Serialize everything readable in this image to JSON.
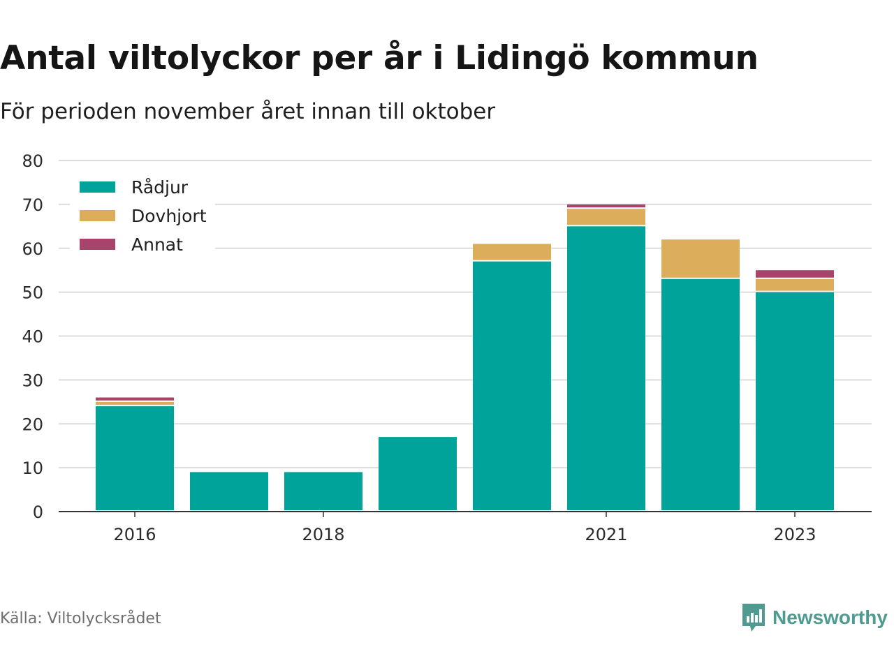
{
  "header": {
    "title": "Antal viltolyckor per år i Lidingö kommun",
    "subtitle": "För perioden november året innan till oktober"
  },
  "footer": {
    "source": "Källa: Viltolycksrådet",
    "brand": "Newsworthy",
    "brand_icon": "bar-chart-speech-bubble-icon",
    "brand_color": "#4f9a91"
  },
  "chart_data": {
    "type": "bar",
    "stacked": true,
    "categories": [
      "2016",
      "2017",
      "2018",
      "2019",
      "2020",
      "2021",
      "2022",
      "2023"
    ],
    "x_tick_labels": [
      "2016",
      "",
      "2018",
      "",
      "",
      "2021",
      "",
      "2023"
    ],
    "series": [
      {
        "name": "Rådjur",
        "color": "#00a399",
        "values": [
          24,
          9,
          9,
          17,
          57,
          65,
          53,
          50
        ]
      },
      {
        "name": "Dovhjort",
        "color": "#dcae5b",
        "values": [
          1,
          0,
          0,
          0,
          4,
          4,
          9,
          3
        ]
      },
      {
        "name": "Annat",
        "color": "#a8446b",
        "values": [
          1,
          0,
          0,
          0,
          0,
          1,
          0,
          2
        ]
      }
    ],
    "y_ticks": [
      0,
      10,
      20,
      30,
      40,
      50,
      60,
      70,
      80
    ],
    "ylim": [
      0,
      80
    ],
    "xlabel": "",
    "ylabel": "",
    "grid": true,
    "legend_position": "top-left"
  }
}
